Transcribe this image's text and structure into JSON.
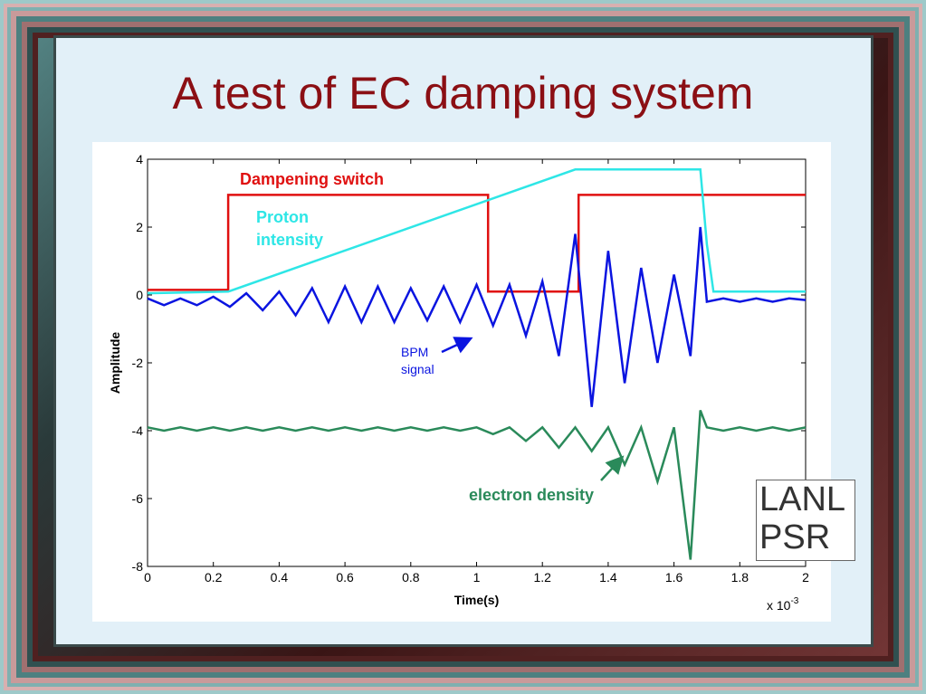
{
  "title": "A test of EC damping system",
  "badge": "LANL PSR",
  "chart_data": {
    "type": "line",
    "xlabel": "Time(s)",
    "ylabel": "Amplitude",
    "x_scale_base": "x 10",
    "x_scale_exponent": "-3",
    "xlim": [
      0,
      2
    ],
    "ylim": [
      -8,
      4
    ],
    "xticks": [
      0,
      0.2,
      0.4,
      0.6,
      0.8,
      1,
      1.2,
      1.4,
      1.6,
      1.8,
      2
    ],
    "yticks": [
      -8,
      -6,
      -4,
      -2,
      0,
      2,
      4
    ],
    "series": [
      {
        "name": "Dampening switch",
        "color": "#e01010",
        "x": [
          0,
          0.245,
          0.245,
          1.035,
          1.035,
          1.31,
          1.31,
          2
        ],
        "values": [
          0.15,
          0.15,
          2.95,
          2.95,
          0.1,
          0.1,
          2.95,
          2.95
        ]
      },
      {
        "name": "Proton intensity",
        "color": "#2ee6e6",
        "x": [
          0,
          0.245,
          1.3,
          1.68,
          1.7,
          1.72,
          2
        ],
        "values": [
          0.05,
          0.1,
          3.7,
          3.7,
          1.5,
          0.1,
          0.1
        ]
      },
      {
        "name": "BPM signal",
        "color": "#0a14e0",
        "x": [
          0,
          0.05,
          0.1,
          0.15,
          0.2,
          0.25,
          0.3,
          0.35,
          0.4,
          0.45,
          0.5,
          0.55,
          0.6,
          0.65,
          0.7,
          0.75,
          0.8,
          0.85,
          0.9,
          0.95,
          1,
          1.05,
          1.1,
          1.15,
          1.2,
          1.25,
          1.3,
          1.35,
          1.4,
          1.45,
          1.5,
          1.55,
          1.6,
          1.65,
          1.68,
          1.7,
          1.75,
          1.8,
          1.85,
          1.9,
          1.95,
          2
        ],
        "values": [
          -0.1,
          -0.3,
          -0.1,
          -0.3,
          -0.05,
          -0.35,
          0.05,
          -0.45,
          0.1,
          -0.6,
          0.2,
          -0.8,
          0.25,
          -0.8,
          0.25,
          -0.8,
          0.2,
          -0.75,
          0.25,
          -0.8,
          0.3,
          -0.9,
          0.3,
          -1.2,
          0.4,
          -1.8,
          1.8,
          -3.3,
          1.3,
          -2.6,
          0.8,
          -2.0,
          0.6,
          -1.8,
          2,
          -0.2,
          -0.1,
          -0.2,
          -0.1,
          -0.2,
          -0.1,
          -0.15
        ]
      },
      {
        "name": "electron density",
        "color": "#2a8a5a",
        "x": [
          0,
          0.05,
          0.1,
          0.15,
          0.2,
          0.25,
          0.3,
          0.35,
          0.4,
          0.45,
          0.5,
          0.55,
          0.6,
          0.65,
          0.7,
          0.75,
          0.8,
          0.85,
          0.9,
          0.95,
          1,
          1.05,
          1.1,
          1.15,
          1.2,
          1.25,
          1.3,
          1.35,
          1.4,
          1.45,
          1.5,
          1.55,
          1.6,
          1.65,
          1.68,
          1.7,
          1.75,
          1.8,
          1.85,
          1.9,
          1.95,
          2
        ],
        "values": [
          -3.9,
          -4.0,
          -3.9,
          -4.0,
          -3.9,
          -4.0,
          -3.9,
          -4.0,
          -3.9,
          -4.0,
          -3.9,
          -4.0,
          -3.9,
          -4.0,
          -3.9,
          -4.0,
          -3.9,
          -4.0,
          -3.9,
          -4.0,
          -3.9,
          -4.1,
          -3.9,
          -4.3,
          -3.9,
          -4.5,
          -3.9,
          -4.6,
          -3.9,
          -5.0,
          -3.9,
          -5.5,
          -3.9,
          -7.8,
          -3.4,
          -3.9,
          -4.0,
          -3.9,
          -4.0,
          -3.9,
          -4.0,
          -3.9
        ]
      }
    ]
  }
}
